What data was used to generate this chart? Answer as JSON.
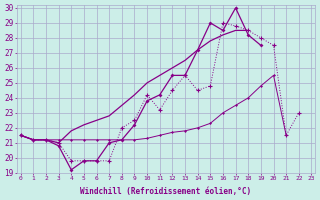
{
  "xlabel": "Windchill (Refroidissement éolien,°C)",
  "bg_color": "#cceee8",
  "grid_color": "#aaaacc",
  "line_color": "#880088",
  "x": [
    0,
    1,
    2,
    3,
    4,
    5,
    6,
    7,
    8,
    9,
    10,
    11,
    12,
    13,
    14,
    15,
    16,
    17,
    18,
    19,
    20,
    21,
    22,
    23
  ],
  "seriesA": [
    21.5,
    21.2,
    21.2,
    21.0,
    21.8,
    22.2,
    22.5,
    22.8,
    23.5,
    24.2,
    25.0,
    25.5,
    26.0,
    26.5,
    27.2,
    27.8,
    28.2,
    28.5,
    28.5,
    null,
    null,
    null,
    null,
    null
  ],
  "seriesB": [
    21.5,
    21.2,
    21.2,
    21.0,
    19.8,
    19.8,
    19.8,
    19.8,
    22.0,
    22.5,
    24.2,
    23.2,
    24.5,
    25.5,
    24.5,
    24.8,
    29.0,
    28.8,
    28.5,
    28.0,
    27.5,
    21.5,
    23.0,
    null
  ],
  "seriesC": [
    21.5,
    21.2,
    21.2,
    20.8,
    19.2,
    19.8,
    19.8,
    21.0,
    21.2,
    22.2,
    23.8,
    24.2,
    25.5,
    25.5,
    27.2,
    29.0,
    28.5,
    30.0,
    28.2,
    27.5,
    null,
    null,
    null,
    null
  ],
  "seriesD": [
    21.5,
    21.2,
    21.2,
    21.2,
    21.2,
    21.2,
    21.2,
    21.2,
    21.2,
    21.2,
    21.3,
    21.5,
    21.7,
    21.8,
    22.0,
    22.3,
    23.0,
    23.5,
    24.0,
    24.8,
    25.5,
    21.5,
    null,
    null
  ],
  "ylim_min": 19,
  "ylim_max": 30,
  "xlim_min": 0,
  "xlim_max": 23
}
